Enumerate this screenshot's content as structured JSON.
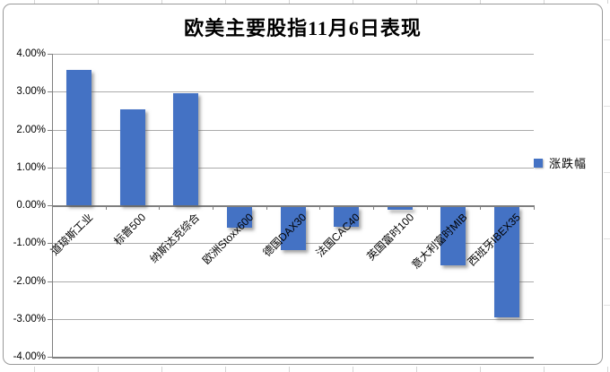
{
  "colors": {
    "bar": "#4472c4",
    "gridline": "#ababab",
    "axis": "#7f7f7f",
    "chart_border": "#9a9a9a",
    "background": "#ffffff"
  },
  "legend": {
    "label": "涨跌幅"
  },
  "chart_data": {
    "type": "bar",
    "title": "欧美主要股指11月6日表现",
    "categories": [
      "道琼斯工业",
      "标普500",
      "纳斯达克综合",
      "欧洲Stoxx600",
      "德国DAX30",
      "法国CAC40",
      "英国富时100",
      "意大利富时MIB",
      "西班牙IBEX35"
    ],
    "series": [
      {
        "name": "涨跌幅",
        "values": [
          3.57,
          2.53,
          2.95,
          -0.54,
          -1.13,
          -0.51,
          -0.07,
          -1.54,
          -2.92
        ]
      }
    ],
    "value_unit": "%",
    "ylim": [
      -4,
      4
    ],
    "ytick_step": 1,
    "ytick_labels": [
      "4.00%",
      "3.00%",
      "2.00%",
      "1.00%",
      "0.00%",
      "-1.00%",
      "-2.00%",
      "-3.00%",
      "-4.00%"
    ],
    "grid": true,
    "legend_position": "right",
    "bar_color": "#4472c4"
  }
}
